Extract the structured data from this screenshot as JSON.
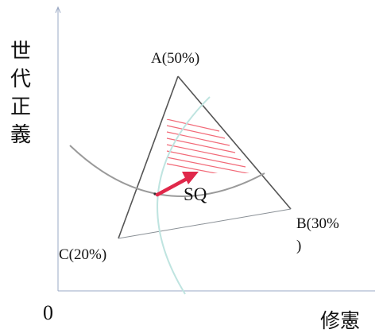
{
  "axes": {
    "y_label_chars": [
      "世",
      "代",
      "正",
      "義"
    ],
    "x_label": "修憲",
    "origin_label": "0"
  },
  "points": {
    "A": "A(50%)",
    "B_line1": "B(30%",
    "B_line2": ")",
    "C": "C(20%)",
    "status_quo": "SQ"
  },
  "colors": {
    "axis": "#9aa8c4",
    "triangle": "#555555",
    "triangle_base": "#8a9096",
    "indifference_curve_gray": "#9a9a9a",
    "indifference_curve_teal": "#bfe4e0",
    "hatch": "#f26a78",
    "arrow": "#e0284a"
  }
}
